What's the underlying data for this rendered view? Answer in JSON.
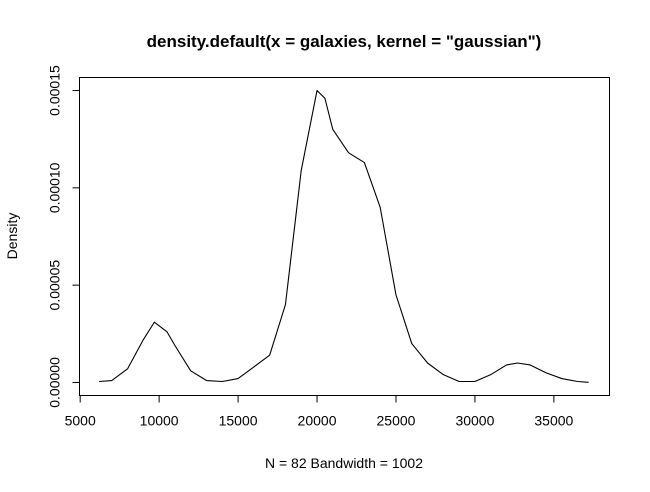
{
  "chart_data": {
    "type": "line",
    "title": "density.default(x = galaxies, kernel = \"gaussian\")",
    "xlabel": "N = 82   Bandwidth = 1002",
    "ylabel": "Density",
    "x": [
      6200,
      7000,
      8000,
      9000,
      9700,
      10500,
      11000,
      12000,
      13000,
      14000,
      15000,
      16000,
      17000,
      18000,
      19000,
      20000,
      20500,
      21000,
      22000,
      23000,
      24000,
      25000,
      26000,
      27000,
      28000,
      29000,
      30000,
      31000,
      32000,
      32700,
      33500,
      34500,
      35500,
      36500,
      37200
    ],
    "series": [
      {
        "name": "density",
        "color": "#000000",
        "values": [
          5e-07,
          1e-06,
          7e-06,
          2.2e-05,
          3.1e-05,
          2.6e-05,
          1.9e-05,
          6e-06,
          1e-06,
          5e-07,
          2e-06,
          8e-06,
          1.4e-05,
          4e-05,
          0.000109,
          0.00015,
          0.000146,
          0.00013,
          0.000118,
          0.000113,
          9e-05,
          4.5e-05,
          2e-05,
          1e-05,
          4e-06,
          5e-07,
          5e-07,
          4e-06,
          9e-06,
          1e-05,
          9e-06,
          5e-06,
          2e-06,
          5e-07,
          1e-07
        ]
      }
    ],
    "xlim": [
      4957,
      38523
    ],
    "ylim": [
      -6.7e-06,
      0.0001567
    ],
    "xticks": [
      5000,
      10000,
      15000,
      20000,
      25000,
      30000,
      35000
    ],
    "yticks": [
      {
        "value": 0,
        "label": "0.00000"
      },
      {
        "value": 5e-05,
        "label": "0.00005"
      },
      {
        "value": 0.0001,
        "label": "0.00010"
      },
      {
        "value": 0.00015,
        "label": "0.00015"
      }
    ],
    "grid": false
  }
}
